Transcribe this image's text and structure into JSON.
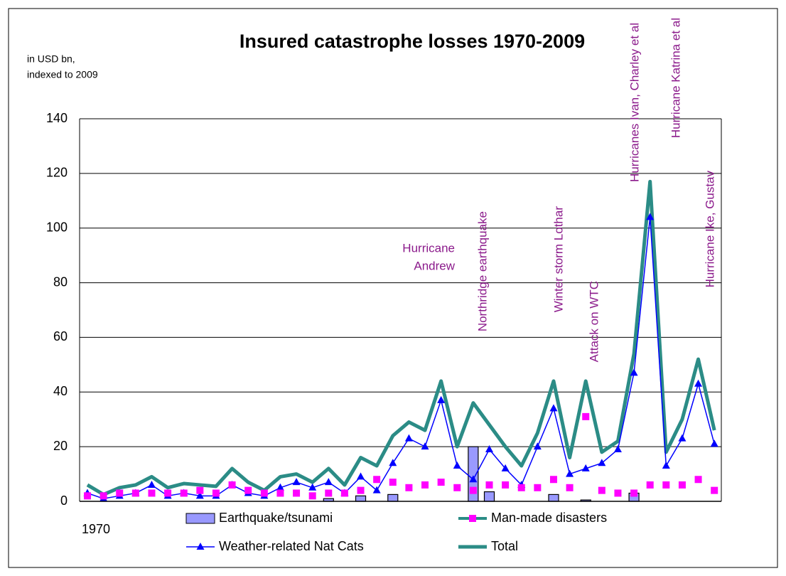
{
  "chart_data": {
    "type": "combo",
    "title": "Insured catastrophe losses 1970-2009",
    "y_label": [
      "in USD bn,",
      "indexed to 2009"
    ],
    "categories": [
      "1970",
      null,
      null,
      null,
      null,
      null,
      null,
      null,
      null,
      null,
      null,
      null,
      null,
      null,
      null,
      null,
      null,
      null,
      null,
      null,
      null,
      null,
      null,
      null,
      null,
      null,
      null,
      null,
      null,
      null,
      null,
      null,
      null,
      null,
      null,
      null,
      null,
      null,
      null,
      null
    ],
    "ylim": [
      0,
      140
    ],
    "yticks": [
      0,
      20,
      40,
      60,
      80,
      100,
      120,
      140
    ],
    "grid": true,
    "series": [
      {
        "name": "Earthquake/tsunami",
        "kind": "bar",
        "color": "#9999ff",
        "values": [
          0,
          0,
          0,
          0,
          0,
          0,
          0,
          0,
          0,
          0,
          0,
          0,
          0,
          0,
          0,
          1,
          0,
          2,
          0,
          2.5,
          0,
          0,
          0,
          0,
          20,
          3.5,
          0,
          0,
          0,
          2.5,
          0,
          0.5,
          0,
          0,
          3,
          0,
          0,
          0,
          0,
          0
        ]
      },
      {
        "name": "Man-made disasters",
        "kind": "line",
        "line": false,
        "marker": "square",
        "color": "#ff00ff",
        "values": [
          2,
          2,
          3,
          3,
          3,
          3,
          3,
          4,
          3,
          6,
          4,
          3,
          3,
          3,
          2,
          3,
          3,
          4,
          8,
          7,
          5,
          6,
          7,
          5,
          4,
          6,
          6,
          5,
          5,
          8,
          5,
          31,
          4,
          3,
          3,
          6,
          6,
          6,
          8,
          4
        ]
      },
      {
        "name": "Weather-related Nat Cats",
        "kind": "line",
        "line": true,
        "marker": "triangle",
        "color": "#0000ff",
        "values": [
          3,
          1,
          2,
          3,
          6,
          2,
          3,
          2,
          2,
          6,
          3,
          2,
          5,
          7,
          5,
          7,
          3,
          9,
          4,
          14,
          23,
          20,
          37,
          13,
          8,
          19,
          12,
          6,
          20,
          34,
          10,
          12,
          14,
          19,
          47,
          104,
          13,
          23,
          43,
          21
        ]
      },
      {
        "name": "Total",
        "kind": "line",
        "line": true,
        "marker": "none",
        "color": "#2b8c86",
        "values": [
          6,
          2.5,
          5,
          6,
          9,
          5,
          6.5,
          6,
          5.5,
          12,
          7,
          4,
          9,
          10,
          7,
          12,
          6,
          16,
          13,
          24,
          29,
          26,
          44,
          20,
          36,
          28,
          20,
          13,
          25,
          44,
          16,
          44,
          18,
          22,
          54,
          117,
          18,
          30,
          52,
          26
        ]
      }
    ],
    "annotations": [
      "Hurricane",
      "Andrew",
      "Northridge earthquake",
      "Winter storm Lothar",
      "Attack on WTC",
      "Hurricanes Ivan, Charley et al",
      "Hurricane Katrina et al",
      "Hurricane Ike, Gustav"
    ],
    "annotation_color": "#8b1a8b"
  }
}
